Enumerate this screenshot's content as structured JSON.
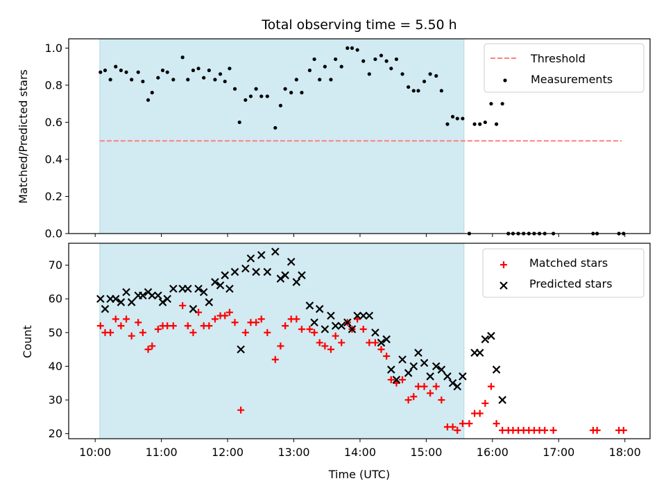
{
  "chart_data": [
    {
      "type": "scatter",
      "title": "Total observing time = 5.50 h",
      "ylabel": "Matched/Predicted stars",
      "xlabel": "",
      "xlim": [
        9.6,
        18.38
      ],
      "ylim": [
        0,
        1.05
      ],
      "yticks": [
        "0.0",
        "0.2",
        "0.4",
        "0.6",
        "0.8",
        "1.0"
      ],
      "grid": false,
      "legend_position": "top-right",
      "shaded_x_range": [
        10.07,
        15.57
      ],
      "shade_color": "#add8e6",
      "threshold": {
        "name": "Threshold",
        "x": [
          10.07,
          17.95
        ],
        "y": 0.5,
        "color": "#ff7f7f",
        "style": "dashed"
      },
      "series": [
        {
          "name": "Measurements",
          "color": "#000000",
          "marker": "dot",
          "points": [
            [
              10.08,
              0.87
            ],
            [
              10.15,
              0.88
            ],
            [
              10.23,
              0.83
            ],
            [
              10.31,
              0.9
            ],
            [
              10.39,
              0.88
            ],
            [
              10.47,
              0.87
            ],
            [
              10.55,
              0.83
            ],
            [
              10.65,
              0.87
            ],
            [
              10.72,
              0.82
            ],
            [
              10.8,
              0.72
            ],
            [
              10.86,
              0.76
            ],
            [
              10.95,
              0.84
            ],
            [
              11.02,
              0.88
            ],
            [
              11.09,
              0.87
            ],
            [
              11.18,
              0.83
            ],
            [
              11.32,
              0.95
            ],
            [
              11.4,
              0.83
            ],
            [
              11.48,
              0.88
            ],
            [
              11.56,
              0.89
            ],
            [
              11.64,
              0.84
            ],
            [
              11.72,
              0.88
            ],
            [
              11.81,
              0.83
            ],
            [
              11.89,
              0.86
            ],
            [
              11.96,
              0.82
            ],
            [
              12.03,
              0.89
            ],
            [
              12.11,
              0.78
            ],
            [
              12.18,
              0.6
            ],
            [
              12.27,
              0.72
            ],
            [
              12.35,
              0.74
            ],
            [
              12.43,
              0.78
            ],
            [
              12.51,
              0.74
            ],
            [
              12.6,
              0.74
            ],
            [
              12.72,
              0.57
            ],
            [
              12.8,
              0.69
            ],
            [
              12.87,
              0.78
            ],
            [
              12.96,
              0.76
            ],
            [
              13.04,
              0.83
            ],
            [
              13.12,
              0.76
            ],
            [
              13.24,
              0.88
            ],
            [
              13.31,
              0.94
            ],
            [
              13.39,
              0.83
            ],
            [
              13.47,
              0.9
            ],
            [
              13.56,
              0.83
            ],
            [
              13.63,
              0.94
            ],
            [
              13.72,
              0.9
            ],
            [
              13.81,
              1.0
            ],
            [
              13.88,
              1.0
            ],
            [
              13.96,
              0.99
            ],
            [
              14.05,
              0.93
            ],
            [
              14.14,
              0.86
            ],
            [
              14.23,
              0.94
            ],
            [
              14.32,
              0.96
            ],
            [
              14.4,
              0.93
            ],
            [
              14.47,
              0.89
            ],
            [
              14.55,
              0.94
            ],
            [
              14.64,
              0.86
            ],
            [
              14.73,
              0.79
            ],
            [
              14.81,
              0.77
            ],
            [
              14.88,
              0.77
            ],
            [
              14.97,
              0.82
            ],
            [
              15.06,
              0.86
            ],
            [
              15.15,
              0.85
            ],
            [
              15.23,
              0.77
            ],
            [
              15.32,
              0.59
            ],
            [
              15.4,
              0.63
            ],
            [
              15.47,
              0.62
            ],
            [
              15.55,
              0.62
            ],
            [
              15.65,
              0.0
            ],
            [
              15.73,
              0.59
            ],
            [
              15.81,
              0.59
            ],
            [
              15.89,
              0.6
            ],
            [
              15.98,
              0.7
            ],
            [
              16.06,
              0.59
            ],
            [
              16.15,
              0.7
            ],
            [
              16.24,
              0.0
            ],
            [
              16.31,
              0.0
            ],
            [
              16.39,
              0.0
            ],
            [
              16.47,
              0.0
            ],
            [
              16.55,
              0.0
            ],
            [
              16.63,
              0.0
            ],
            [
              16.71,
              0.0
            ],
            [
              16.79,
              0.0
            ],
            [
              16.92,
              0.0
            ],
            [
              17.52,
              0.0
            ],
            [
              17.58,
              0.0
            ],
            [
              17.91,
              0.0
            ],
            [
              17.98,
              0.0
            ]
          ]
        }
      ]
    },
    {
      "type": "scatter",
      "title": "",
      "ylabel": "Count",
      "xlabel": "Time (UTC)",
      "xlim": [
        9.6,
        18.38
      ],
      "ylim": [
        18.5,
        76.5
      ],
      "xticks": [
        "10:00",
        "11:00",
        "12:00",
        "13:00",
        "14:00",
        "15:00",
        "16:00",
        "17:00",
        "18:00"
      ],
      "yticks": [
        "20",
        "30",
        "40",
        "50",
        "60",
        "70"
      ],
      "grid": false,
      "legend_position": "top-right",
      "shaded_x_range": [
        10.07,
        15.57
      ],
      "shade_color": "#add8e6",
      "series": [
        {
          "name": "Matched stars",
          "color": "#ff0000",
          "marker": "plus",
          "points": [
            [
              10.08,
              52
            ],
            [
              10.15,
              50
            ],
            [
              10.23,
              50
            ],
            [
              10.31,
              54
            ],
            [
              10.39,
              52
            ],
            [
              10.47,
              54
            ],
            [
              10.55,
              49
            ],
            [
              10.65,
              53
            ],
            [
              10.72,
              50
            ],
            [
              10.8,
              45
            ],
            [
              10.86,
              46
            ],
            [
              10.95,
              51
            ],
            [
              11.02,
              52
            ],
            [
              11.09,
              52
            ],
            [
              11.18,
              52
            ],
            [
              11.32,
              58
            ],
            [
              11.4,
              52
            ],
            [
              11.48,
              50
            ],
            [
              11.56,
              56
            ],
            [
              11.64,
              52
            ],
            [
              11.72,
              52
            ],
            [
              11.81,
              54
            ],
            [
              11.89,
              55
            ],
            [
              11.96,
              55
            ],
            [
              12.03,
              56
            ],
            [
              12.11,
              53
            ],
            [
              12.2,
              27
            ],
            [
              12.27,
              50
            ],
            [
              12.35,
              53
            ],
            [
              12.43,
              53
            ],
            [
              12.51,
              54
            ],
            [
              12.6,
              50
            ],
            [
              12.72,
              42
            ],
            [
              12.8,
              46
            ],
            [
              12.87,
              52
            ],
            [
              12.96,
              54
            ],
            [
              13.04,
              54
            ],
            [
              13.12,
              51
            ],
            [
              13.24,
              51
            ],
            [
              13.31,
              50
            ],
            [
              13.39,
              47
            ],
            [
              13.47,
              46
            ],
            [
              13.56,
              45
            ],
            [
              13.63,
              49
            ],
            [
              13.72,
              47
            ],
            [
              13.81,
              53
            ],
            [
              13.88,
              51
            ],
            [
              13.96,
              54
            ],
            [
              14.05,
              51
            ],
            [
              14.14,
              47
            ],
            [
              14.23,
              47
            ],
            [
              14.32,
              45
            ],
            [
              14.4,
              43
            ],
            [
              14.47,
              36
            ],
            [
              14.55,
              35
            ],
            [
              14.64,
              36
            ],
            [
              14.73,
              30
            ],
            [
              14.81,
              31
            ],
            [
              14.88,
              34
            ],
            [
              14.97,
              34
            ],
            [
              15.06,
              32
            ],
            [
              15.15,
              34
            ],
            [
              15.23,
              30
            ],
            [
              15.32,
              22
            ],
            [
              15.4,
              22
            ],
            [
              15.47,
              21
            ],
            [
              15.55,
              23
            ],
            [
              15.65,
              23
            ],
            [
              15.73,
              26
            ],
            [
              15.81,
              26
            ],
            [
              15.89,
              29
            ],
            [
              15.98,
              34
            ],
            [
              16.06,
              23
            ],
            [
              16.15,
              21
            ],
            [
              16.24,
              21
            ],
            [
              16.31,
              21
            ],
            [
              16.39,
              21
            ],
            [
              16.47,
              21
            ],
            [
              16.55,
              21
            ],
            [
              16.63,
              21
            ],
            [
              16.71,
              21
            ],
            [
              16.79,
              21
            ],
            [
              16.92,
              21
            ],
            [
              17.52,
              21
            ],
            [
              17.58,
              21
            ],
            [
              17.91,
              21
            ],
            [
              17.98,
              21
            ]
          ]
        },
        {
          "name": "Predicted stars",
          "color": "#000000",
          "marker": "x",
          "points": [
            [
              10.08,
              60
            ],
            [
              10.15,
              57
            ],
            [
              10.23,
              60
            ],
            [
              10.31,
              60
            ],
            [
              10.39,
              59
            ],
            [
              10.47,
              62
            ],
            [
              10.55,
              59
            ],
            [
              10.65,
              61
            ],
            [
              10.72,
              61
            ],
            [
              10.8,
              62
            ],
            [
              10.86,
              61
            ],
            [
              10.95,
              61
            ],
            [
              11.02,
              59
            ],
            [
              11.09,
              60
            ],
            [
              11.18,
              63
            ],
            [
              11.32,
              63
            ],
            [
              11.4,
              63
            ],
            [
              11.48,
              57
            ],
            [
              11.56,
              63
            ],
            [
              11.64,
              62
            ],
            [
              11.72,
              59
            ],
            [
              11.81,
              65
            ],
            [
              11.89,
              64
            ],
            [
              11.96,
              67
            ],
            [
              12.03,
              63
            ],
            [
              12.11,
              68
            ],
            [
              12.2,
              45
            ],
            [
              12.27,
              69
            ],
            [
              12.35,
              72
            ],
            [
              12.43,
              68
            ],
            [
              12.51,
              73
            ],
            [
              12.6,
              68
            ],
            [
              12.72,
              74
            ],
            [
              12.8,
              66
            ],
            [
              12.87,
              67
            ],
            [
              12.96,
              71
            ],
            [
              13.04,
              65
            ],
            [
              13.12,
              67
            ],
            [
              13.24,
              58
            ],
            [
              13.31,
              53
            ],
            [
              13.39,
              57
            ],
            [
              13.47,
              51
            ],
            [
              13.56,
              55
            ],
            [
              13.63,
              52
            ],
            [
              13.72,
              52
            ],
            [
              13.81,
              53
            ],
            [
              13.88,
              51
            ],
            [
              13.96,
              55
            ],
            [
              14.05,
              55
            ],
            [
              14.14,
              55
            ],
            [
              14.23,
              50
            ],
            [
              14.32,
              47
            ],
            [
              14.4,
              48
            ],
            [
              14.47,
              39
            ],
            [
              14.55,
              36
            ],
            [
              14.64,
              42
            ],
            [
              14.73,
              38
            ],
            [
              14.81,
              40
            ],
            [
              14.88,
              44
            ],
            [
              14.97,
              41
            ],
            [
              15.06,
              37
            ],
            [
              15.15,
              40
            ],
            [
              15.23,
              39
            ],
            [
              15.32,
              37
            ],
            [
              15.4,
              35
            ],
            [
              15.47,
              34
            ],
            [
              15.55,
              37
            ],
            [
              15.73,
              44
            ],
            [
              15.81,
              44
            ],
            [
              15.89,
              48
            ],
            [
              15.98,
              49
            ],
            [
              16.06,
              39
            ],
            [
              16.15,
              30
            ]
          ]
        }
      ]
    }
  ]
}
